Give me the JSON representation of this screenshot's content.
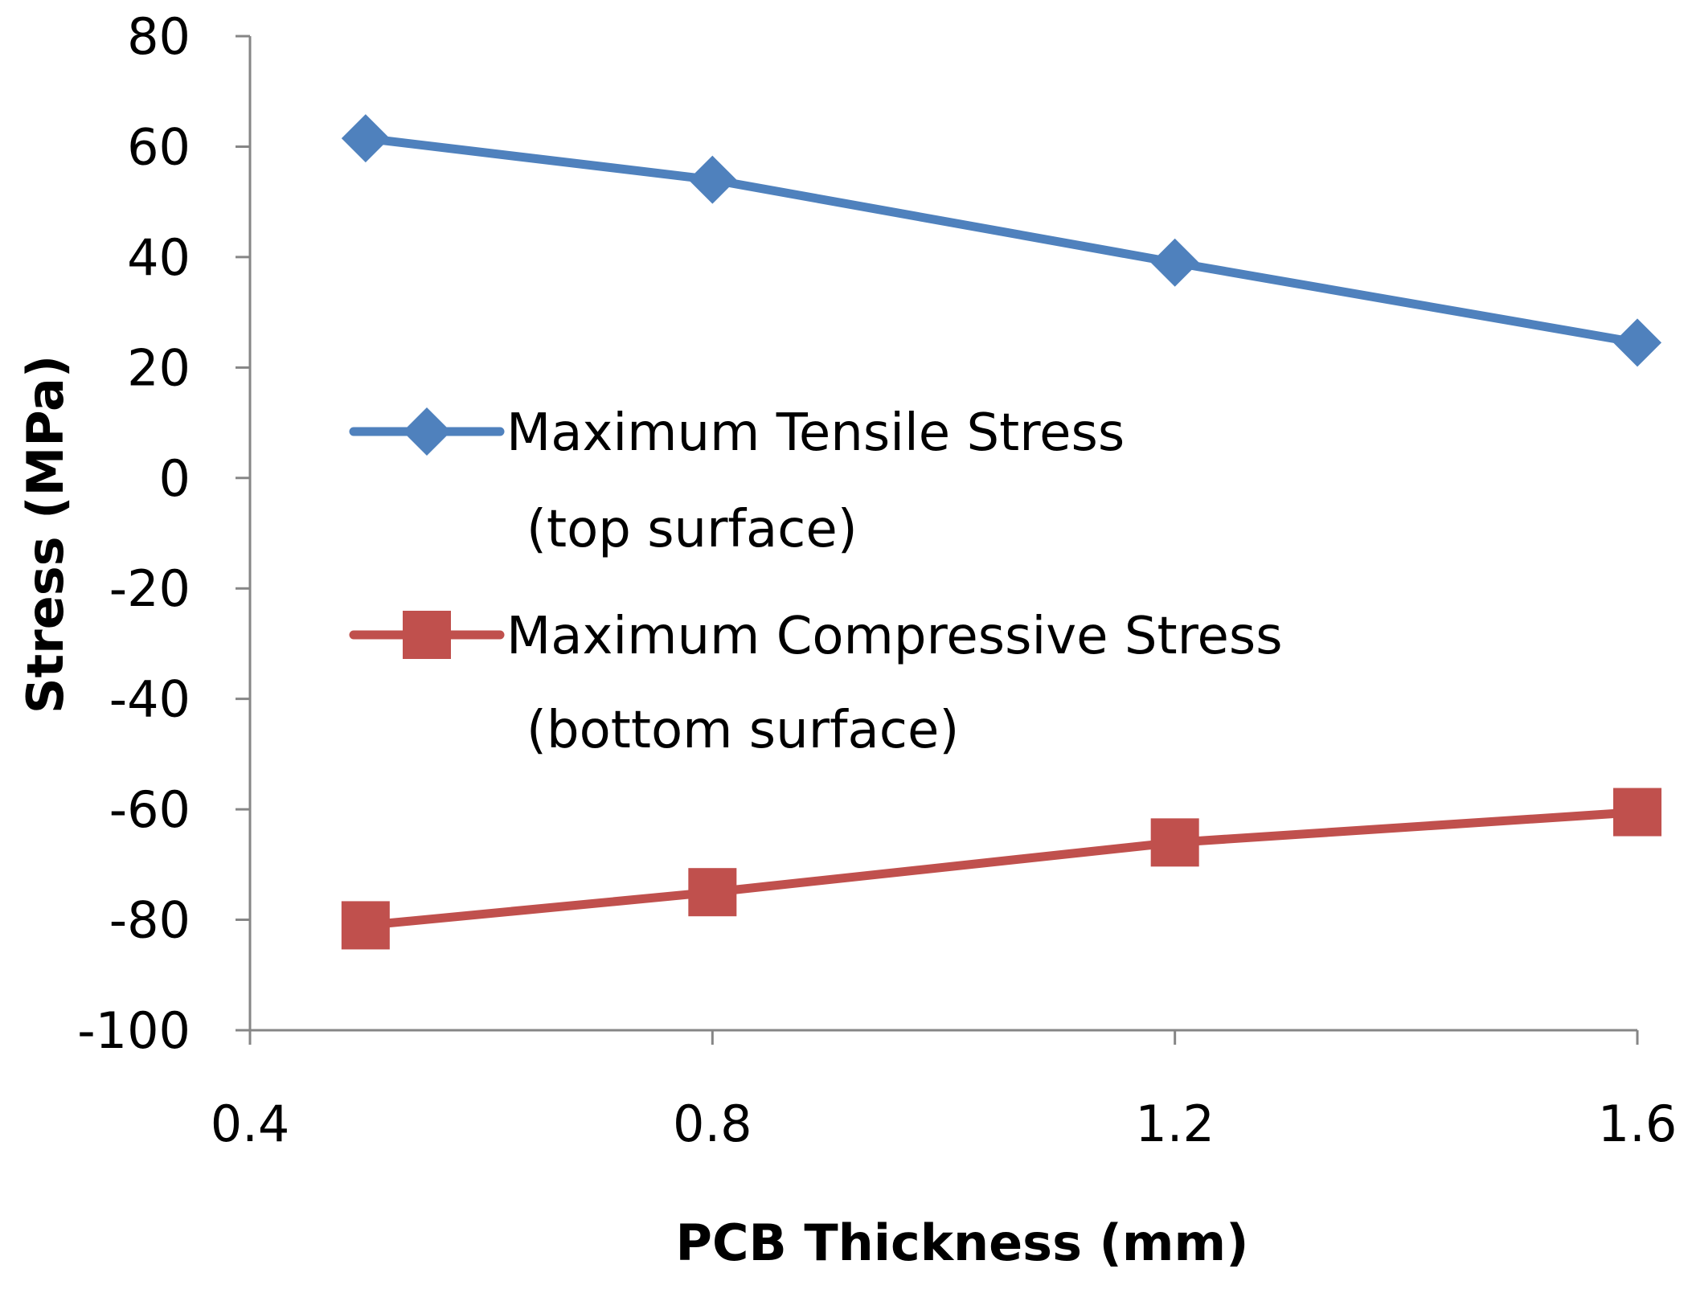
{
  "chart_data": {
    "type": "line",
    "title": "",
    "xlabel": "PCB Thickness (mm)",
    "ylabel": "Stress (MPa)",
    "xlim": [
      0.4,
      1.6
    ],
    "ylim": [
      -100,
      80
    ],
    "xticks": [
      "0.4",
      "0.8",
      "1.2",
      "1.6"
    ],
    "yticks": [
      "80",
      "60",
      "40",
      "20",
      "0",
      "-20",
      "-40",
      "-60",
      "-80",
      "-100"
    ],
    "grid": false,
    "legend_position": "center-left",
    "x": [
      0.5,
      0.8,
      1.2,
      1.6
    ],
    "series": [
      {
        "name": "Maximum Tensile Stress",
        "name_line2": "(top surface)",
        "color": "#4F81BD",
        "marker": "diamond",
        "values": [
          61.5,
          54,
          39,
          24.5
        ]
      },
      {
        "name": "Maximum Compressive Stress",
        "name_line2": "(bottom surface)",
        "color": "#C0504D",
        "marker": "square",
        "values": [
          -81,
          -75,
          -66,
          -60.5
        ]
      }
    ]
  }
}
